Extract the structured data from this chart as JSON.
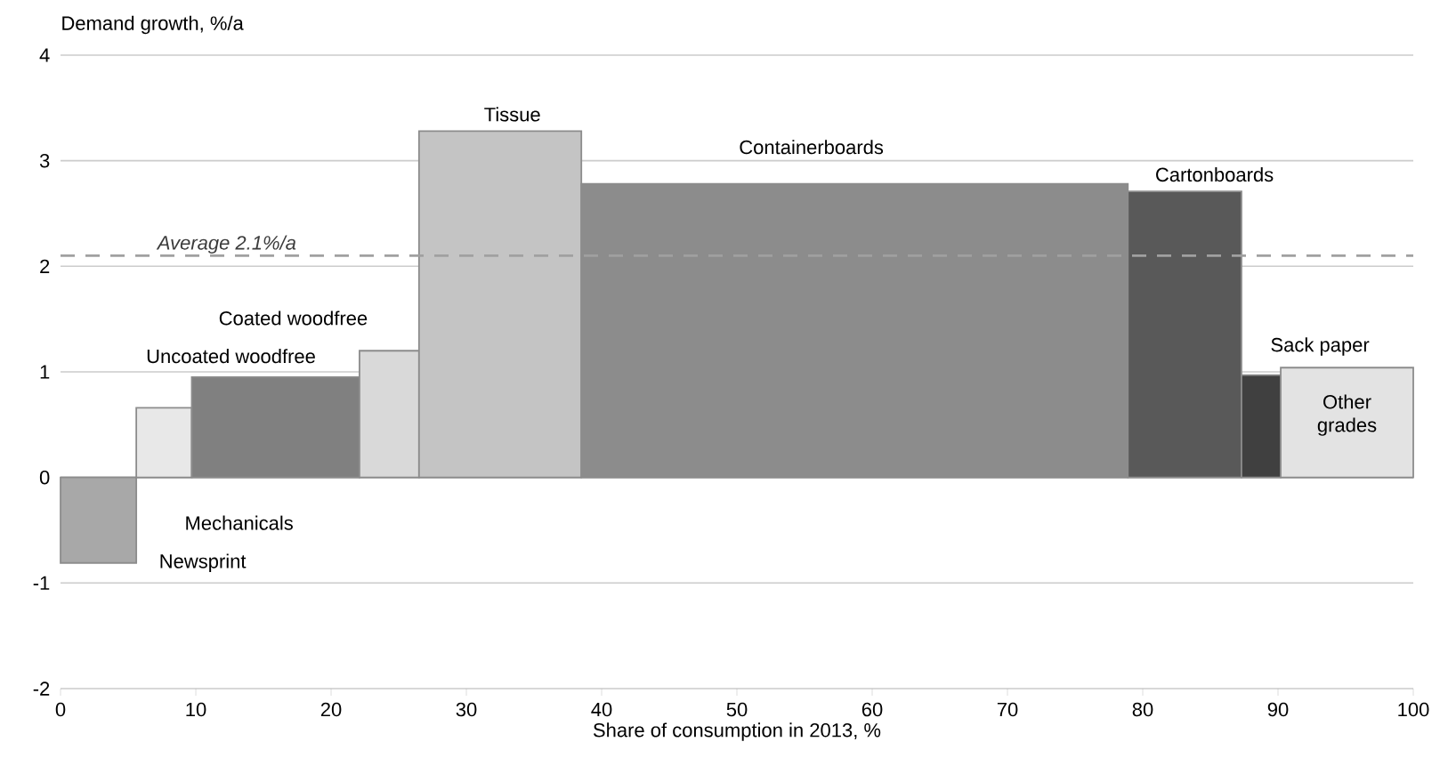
{
  "chart_data": {
    "type": "histogram",
    "xlabel": "Share of consumption in 2013, %",
    "ylabel": "Demand growth, %/a",
    "bins": [
      0,
      5.6,
      9.7,
      22.1,
      26.5,
      38.5,
      78.9,
      87.3,
      90.2,
      100
    ],
    "values": [
      -0.81,
      0.66,
      0.95,
      1.2,
      3.28,
      2.78,
      2.71,
      0.97,
      1.04
    ],
    "colors": [
      "#a8a8a8",
      "#e8e8e8",
      "#808080",
      "#d9d9d9",
      "#c4c4c4",
      "#8c8c8c",
      "#595959",
      "#404040",
      "#e3e3e3"
    ],
    "xlim": [
      0,
      100
    ],
    "xticks": [
      0,
      10,
      20,
      30,
      40,
      50,
      60,
      70,
      80,
      90,
      100
    ],
    "ylim": [
      -2,
      4
    ],
    "yticks": [
      -2,
      -1,
      0,
      1,
      2,
      3,
      4
    ],
    "grid": "y",
    "ref_lines": [
      {
        "axis": "y",
        "value": 2.1,
        "label": "*Average 2.1%/a*",
        "color": "#a0a0a0",
        "line_style": "dashed"
      }
    ],
    "annotations": [
      "Newsprint",
      "Mechanicals",
      "Uncoated woodfree",
      "Coated woodfree",
      "Tissue",
      "Containerboards",
      "Cartonboards",
      "Sack paper",
      "Other grades"
    ]
  }
}
